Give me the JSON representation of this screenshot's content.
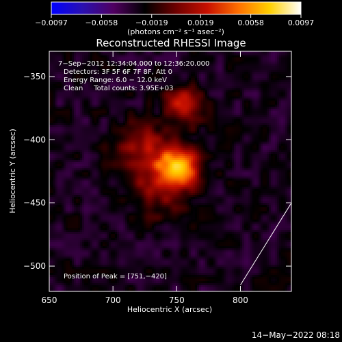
{
  "chart_data": {
    "type": "heatmap",
    "title": "Reconstructed RHESSI Image",
    "xlabel": "Heliocentric X (arcsec)",
    "ylabel": "Heliocentric Y (arcsec)",
    "xlim": [
      650,
      840
    ],
    "ylim": [
      -520,
      -330
    ],
    "x_ticks": [
      650,
      700,
      750,
      800
    ],
    "x_tick_labels": [
      "650",
      "700",
      "750",
      "800"
    ],
    "y_ticks": [
      -350,
      -400,
      -450,
      -500
    ],
    "y_tick_labels": [
      "−350",
      "−400",
      "−450",
      "−500"
    ],
    "colorbar": {
      "range": [
        -0.0097,
        0.0097
      ],
      "ticks": [
        -0.0097,
        -0.0058,
        -0.0019,
        0.0019,
        0.0058,
        0.0097
      ],
      "tick_labels": [
        "−0.0097",
        "−0.0058",
        "−0.0019",
        "0.0019",
        "0.0058",
        "0.0097"
      ],
      "unit": "(photons cm⁻² s⁻¹ asec⁻²)",
      "stops": [
        "#0000ff",
        "#2a10b0",
        "#500060",
        "#000000",
        "#6e0000",
        "#c81000",
        "#ff7000",
        "#ffd000",
        "#ffffff"
      ]
    },
    "annotations": {
      "time_range": "7−Sep−2012 12:34:04.000 to 12:36:20.000",
      "detectors": "Detectors: 3F 5F 6F 7F 8F, Att 0",
      "energy": "Energy Range: 6.0 − 12.0 keV",
      "clean": "Clean     Total counts: 3.95E+03",
      "peak": "Position of Peak = [751,−420]"
    },
    "peak": {
      "x": 751,
      "y": -420
    },
    "sources": [
      {
        "x": 751,
        "y": -421,
        "amp": 1.0,
        "sigma": 12
      },
      {
        "x": 756,
        "y": -372,
        "amp": 0.62,
        "sigma": 10
      },
      {
        "x": 722,
        "y": -405,
        "amp": 0.45,
        "sigma": 14
      },
      {
        "x": 735,
        "y": -440,
        "amp": 0.35,
        "sigma": 16
      }
    ],
    "limb_line": {
      "x": [
        800,
        840
      ],
      "y": [
        -515,
        -450
      ]
    }
  },
  "footer": {
    "date": "14−May−2022 08:18"
  }
}
